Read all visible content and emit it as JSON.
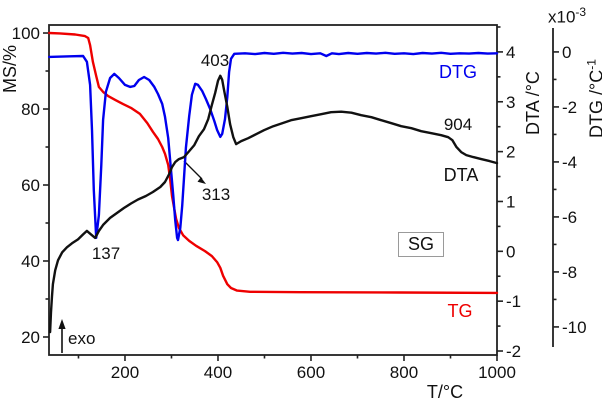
{
  "figure": {
    "colors": {
      "tg": "#ee0000",
      "dtg": "#0000ee",
      "dta": "#111111",
      "frame": "#222222",
      "box_border": "#9a9a9a"
    }
  },
  "chart_data": {
    "type": "line",
    "title": "",
    "grid": false,
    "legend_position": "none",
    "axes": {
      "x": {
        "label": "T/°C",
        "min": 36.6,
        "max": 1000,
        "major_ticks": [
          200,
          400,
          600,
          800,
          1000
        ],
        "minor_ticks": [
          100,
          300,
          500,
          700,
          900
        ]
      },
      "y_ms": {
        "label": "MS/%",
        "min": 15.26,
        "max": 102.11,
        "major_ticks": [
          20,
          40,
          60,
          80,
          100
        ],
        "minor_ticks": [
          30,
          50,
          70,
          90
        ]
      },
      "y_dta": {
        "label": "DTA /°C",
        "min": -2.08,
        "max": 4.54,
        "major_ticks": [
          4,
          3,
          2,
          1,
          0,
          -1,
          -2
        ],
        "minor_ticks": [
          4.5,
          3.5,
          2.5,
          1.5,
          0.5,
          -0.5,
          -1.5
        ]
      },
      "y_dtg": {
        "label_base": "DTG /°C",
        "label_exp": "-1",
        "multiplier_base": "x10",
        "multiplier_exp": "-3",
        "min": -10.73,
        "max": 0.87,
        "major_ticks": [
          0,
          -2,
          -4,
          -6,
          -8,
          -10
        ],
        "minor_ticks": [
          -1,
          -3,
          -5,
          -7,
          -9
        ]
      }
    },
    "series": [
      {
        "name": "TG",
        "color": "#ee0000",
        "axis": "y_ms",
        "points": [
          [
            37,
            100
          ],
          [
            60,
            99.9
          ],
          [
            93,
            99.6
          ],
          [
            114,
            99.2
          ],
          [
            121,
            98.7
          ],
          [
            125,
            96.8
          ],
          [
            131,
            92.4
          ],
          [
            138,
            88.7
          ],
          [
            144,
            85.8
          ],
          [
            153,
            84.5
          ],
          [
            164,
            83.4
          ],
          [
            179,
            82.4
          ],
          [
            196,
            81.3
          ],
          [
            213,
            80.3
          ],
          [
            232,
            78.7
          ],
          [
            248,
            76.3
          ],
          [
            260,
            74.0
          ],
          [
            271,
            72.1
          ],
          [
            280,
            70.0
          ],
          [
            286,
            68.2
          ],
          [
            293,
            65.3
          ],
          [
            297,
            61.6
          ],
          [
            301,
            57.1
          ],
          [
            306,
            53.7
          ],
          [
            310,
            51.1
          ],
          [
            316,
            48.7
          ],
          [
            325,
            46.8
          ],
          [
            338,
            45.3
          ],
          [
            353,
            44.0
          ],
          [
            372,
            42.6
          ],
          [
            387,
            41.3
          ],
          [
            398,
            39.7
          ],
          [
            405,
            38.2
          ],
          [
            411,
            36.1
          ],
          [
            420,
            33.9
          ],
          [
            428,
            32.9
          ],
          [
            441,
            32.2
          ],
          [
            469,
            31.9
          ],
          [
            577,
            31.8
          ],
          [
            792,
            31.7
          ],
          [
            1000,
            31.6
          ]
        ]
      },
      {
        "name": "DTG",
        "color": "#0000ee",
        "axis": "y_dtg",
        "points": [
          [
            37,
            -0.18
          ],
          [
            82,
            -0.16
          ],
          [
            110,
            -0.15
          ],
          [
            118,
            -0.36
          ],
          [
            125,
            -1.2
          ],
          [
            129,
            -2.84
          ],
          [
            133,
            -5.02
          ],
          [
            138,
            -6.76
          ],
          [
            144,
            -5.93
          ],
          [
            149,
            -4.11
          ],
          [
            153,
            -2.47
          ],
          [
            159,
            -1.45
          ],
          [
            168,
            -0.95
          ],
          [
            177,
            -0.8
          ],
          [
            187,
            -0.95
          ],
          [
            200,
            -1.2
          ],
          [
            211,
            -1.27
          ],
          [
            220,
            -1.24
          ],
          [
            230,
            -1.02
          ],
          [
            241,
            -0.91
          ],
          [
            252,
            -1.02
          ],
          [
            263,
            -1.27
          ],
          [
            271,
            -1.53
          ],
          [
            280,
            -1.89
          ],
          [
            286,
            -2.36
          ],
          [
            293,
            -3.13
          ],
          [
            299,
            -4.29
          ],
          [
            304,
            -5.24
          ],
          [
            308,
            -6.11
          ],
          [
            312,
            -6.76
          ],
          [
            314,
            -6.84
          ],
          [
            319,
            -6.4
          ],
          [
            323,
            -5.6
          ],
          [
            327,
            -4.58
          ],
          [
            331,
            -3.49
          ],
          [
            338,
            -2.33
          ],
          [
            344,
            -1.56
          ],
          [
            351,
            -1.16
          ],
          [
            357,
            -1.2
          ],
          [
            366,
            -1.42
          ],
          [
            374,
            -1.71
          ],
          [
            383,
            -2.07
          ],
          [
            392,
            -2.51
          ],
          [
            398,
            -2.84
          ],
          [
            405,
            -3.09
          ],
          [
            409,
            -2.98
          ],
          [
            415,
            -2.44
          ],
          [
            420,
            -1.64
          ],
          [
            424,
            -0.73
          ],
          [
            428,
            -0.25
          ],
          [
            435,
            -0.07
          ],
          [
            458,
            -0.05
          ],
          [
            480,
            -0.08
          ],
          [
            500,
            -0.04
          ],
          [
            520,
            -0.07
          ],
          [
            540,
            -0.03
          ],
          [
            560,
            -0.06
          ],
          [
            580,
            -0.04
          ],
          [
            600,
            -0.08
          ],
          [
            620,
            -0.05
          ],
          [
            633,
            -0.15
          ],
          [
            645,
            -0.05
          ],
          [
            660,
            -0.08
          ],
          [
            680,
            -0.04
          ],
          [
            700,
            -0.07
          ],
          [
            720,
            -0.04
          ],
          [
            740,
            -0.06
          ],
          [
            760,
            -0.03
          ],
          [
            780,
            -0.07
          ],
          [
            800,
            -0.05
          ],
          [
            820,
            -0.08
          ],
          [
            840,
            -0.04
          ],
          [
            860,
            -0.06
          ],
          [
            880,
            -0.03
          ],
          [
            900,
            -0.07
          ],
          [
            920,
            -0.05
          ],
          [
            940,
            -0.06
          ],
          [
            960,
            -0.04
          ],
          [
            980,
            -0.06
          ],
          [
            1000,
            -0.05
          ]
        ]
      },
      {
        "name": "DTA",
        "color": "#111111",
        "axis": "y_dta",
        "points": [
          [
            39,
            -1.62
          ],
          [
            41,
            -1.22
          ],
          [
            43,
            -0.9
          ],
          [
            45,
            -0.66
          ],
          [
            50,
            -0.38
          ],
          [
            56,
            -0.18
          ],
          [
            65,
            -0.02
          ],
          [
            75,
            0.08
          ],
          [
            86,
            0.16
          ],
          [
            99,
            0.24
          ],
          [
            110,
            0.34
          ],
          [
            118,
            0.41
          ],
          [
            127,
            0.34
          ],
          [
            136,
            0.27
          ],
          [
            144,
            0.41
          ],
          [
            153,
            0.53
          ],
          [
            168,
            0.67
          ],
          [
            183,
            0.77
          ],
          [
            198,
            0.87
          ],
          [
            213,
            0.96
          ],
          [
            228,
            1.04
          ],
          [
            245,
            1.11
          ],
          [
            260,
            1.19
          ],
          [
            276,
            1.29
          ],
          [
            286,
            1.39
          ],
          [
            295,
            1.55
          ],
          [
            301,
            1.69
          ],
          [
            308,
            1.79
          ],
          [
            316,
            1.85
          ],
          [
            327,
            1.89
          ],
          [
            338,
            2.01
          ],
          [
            349,
            2.13
          ],
          [
            359,
            2.31
          ],
          [
            370,
            2.45
          ],
          [
            379,
            2.65
          ],
          [
            387,
            2.94
          ],
          [
            394,
            3.18
          ],
          [
            400,
            3.42
          ],
          [
            405,
            3.52
          ],
          [
            409,
            3.44
          ],
          [
            413,
            3.24
          ],
          [
            420,
            2.9
          ],
          [
            426,
            2.55
          ],
          [
            433,
            2.29
          ],
          [
            439,
            2.15
          ],
          [
            450,
            2.21
          ],
          [
            465,
            2.27
          ],
          [
            482,
            2.35
          ],
          [
            499,
            2.43
          ],
          [
            519,
            2.51
          ],
          [
            538,
            2.57
          ],
          [
            557,
            2.63
          ],
          [
            579,
            2.67
          ],
          [
            600,
            2.71
          ],
          [
            622,
            2.75
          ],
          [
            643,
            2.79
          ],
          [
            665,
            2.8
          ],
          [
            687,
            2.78
          ],
          [
            708,
            2.73
          ],
          [
            730,
            2.69
          ],
          [
            751,
            2.63
          ],
          [
            773,
            2.57
          ],
          [
            794,
            2.51
          ],
          [
            816,
            2.47
          ],
          [
            837,
            2.41
          ],
          [
            859,
            2.37
          ],
          [
            880,
            2.33
          ],
          [
            895,
            2.29
          ],
          [
            904,
            2.23
          ],
          [
            913,
            2.09
          ],
          [
            923,
            1.99
          ],
          [
            934,
            1.93
          ],
          [
            949,
            1.89
          ],
          [
            966,
            1.85
          ],
          [
            984,
            1.81
          ],
          [
            1000,
            1.77
          ]
        ]
      }
    ],
    "annotations": {
      "peak403": {
        "text": "403"
      },
      "peak313": {
        "text": "313"
      },
      "peak137": {
        "text": "137"
      },
      "step904": {
        "text": "904"
      },
      "dtg_curve_label": {
        "text": "DTG"
      },
      "dta_curve_label": {
        "text": "DTA"
      },
      "tg_curve_label": {
        "text": "TG"
      },
      "sample_label": {
        "text": "SG"
      },
      "exo_label": {
        "text": "exo"
      }
    }
  }
}
